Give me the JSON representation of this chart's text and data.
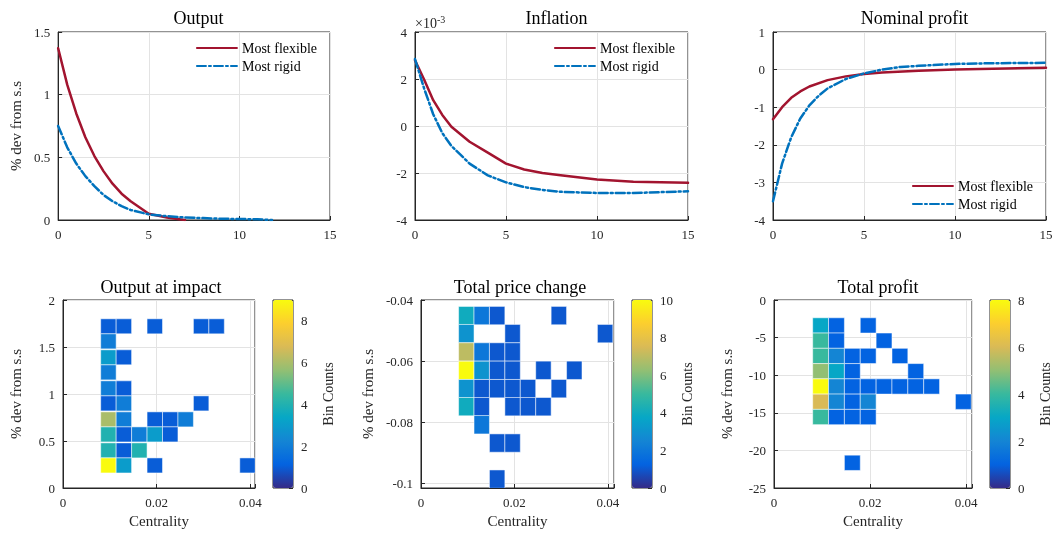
{
  "chart_data": [
    {
      "type": "line",
      "title": "Output",
      "ylabel": "% dev from s.s",
      "xlim": [
        0,
        15
      ],
      "xticks": [
        0,
        5,
        10,
        15
      ],
      "ylim": [
        0,
        1.5
      ],
      "yticks": [
        0,
        0.5,
        1,
        1.5
      ],
      "grid": true,
      "legend": "top right",
      "marker": "none",
      "series": [
        {
          "name": "Most flexible",
          "color": "#a2142f",
          "line_style": "solid",
          "x": [
            0,
            0.5,
            1,
            1.5,
            2,
            2.5,
            3,
            3.5,
            4,
            5,
            6,
            7
          ],
          "values": [
            1.37,
            1.08,
            0.85,
            0.66,
            0.51,
            0.39,
            0.29,
            0.21,
            0.15,
            0.05,
            0.02,
            0
          ]
        },
        {
          "name": "Most rigid",
          "color": "#0072bd",
          "line_style": "dashed",
          "x": [
            0,
            0.5,
            1,
            1.5,
            2,
            2.5,
            3,
            3.5,
            4,
            5,
            6,
            7,
            8,
            9,
            10,
            11,
            11.8
          ],
          "values": [
            0.75,
            0.58,
            0.45,
            0.35,
            0.27,
            0.2,
            0.15,
            0.11,
            0.08,
            0.045,
            0.03,
            0.02,
            0.015,
            0.01,
            0.008,
            0.005,
            0
          ]
        }
      ]
    },
    {
      "type": "line",
      "title": "Inflation",
      "annotations": [
        "×10$^{-3}$"
      ],
      "xlim": [
        0,
        15
      ],
      "xticks": [
        0,
        5,
        10,
        15
      ],
      "ylim": [
        -4,
        4
      ],
      "yticks": [
        -4,
        -2,
        0,
        2,
        4
      ],
      "grid": true,
      "legend": "top right",
      "marker": "none",
      "series": [
        {
          "name": "Most flexible",
          "color": "#a2142f",
          "line_style": "solid",
          "x": [
            0,
            0.5,
            1,
            1.5,
            2,
            3,
            4,
            5,
            6,
            7,
            8,
            10,
            12,
            15
          ],
          "values": [
            2.8,
            1.98,
            1.1,
            0.47,
            -0.03,
            -0.67,
            -1.13,
            -1.6,
            -1.85,
            -2.0,
            -2.1,
            -2.28,
            -2.37,
            -2.42
          ]
        },
        {
          "name": "Most rigid",
          "color": "#0072bd",
          "line_style": "dashed",
          "x": [
            0,
            0.5,
            1,
            1.5,
            2,
            3,
            4,
            5,
            6,
            7,
            8,
            10,
            12,
            15
          ],
          "values": [
            2.85,
            1.6,
            0.5,
            -0.3,
            -0.85,
            -1.6,
            -2.1,
            -2.4,
            -2.6,
            -2.72,
            -2.8,
            -2.85,
            -2.85,
            -2.78
          ]
        }
      ]
    },
    {
      "type": "line",
      "title": "Nominal profit",
      "xlim": [
        0,
        15
      ],
      "xticks": [
        0,
        5,
        10,
        15
      ],
      "ylim": [
        -4,
        1
      ],
      "yticks": [
        -4,
        -3,
        -2,
        -1,
        0,
        1
      ],
      "grid": true,
      "legend": "bottom right",
      "marker": "none",
      "series": [
        {
          "name": "Most flexible",
          "color": "#a2142f",
          "line_style": "solid",
          "x": [
            0,
            0.5,
            1,
            1.5,
            2,
            3,
            4,
            5,
            6,
            8,
            10,
            15
          ],
          "values": [
            -1.32,
            -1.0,
            -0.75,
            -0.58,
            -0.45,
            -0.28,
            -0.18,
            -0.12,
            -0.08,
            -0.03,
            0.0,
            0.05
          ]
        },
        {
          "name": "Most rigid",
          "color": "#0072bd",
          "line_style": "dashed",
          "x": [
            0,
            0.5,
            1,
            1.5,
            2,
            2.5,
            3,
            4,
            5,
            6,
            7,
            8,
            10,
            12,
            15
          ],
          "values": [
            -3.5,
            -2.5,
            -1.8,
            -1.3,
            -0.95,
            -0.7,
            -0.5,
            -0.25,
            -0.1,
            0.0,
            0.07,
            0.1,
            0.15,
            0.17,
            0.18
          ]
        }
      ]
    },
    {
      "type": "scatter",
      "title": "Output at impact",
      "xlabel": "Centrality",
      "ylabel": "% dev from s.s",
      "clabel": "Bin Counts",
      "xlim": [
        0,
        0.041
      ],
      "xticks": [
        0,
        0.02,
        0.04
      ],
      "ylim": [
        0,
        2
      ],
      "yticks": [
        0,
        0.5,
        1,
        1.5,
        2
      ],
      "clim": [
        0,
        9
      ],
      "cticks": [
        0,
        2,
        4,
        6,
        8
      ],
      "grid": true,
      "marker": "square",
      "x": [
        0.0097,
        0.013,
        0.0196,
        0.0295,
        0.0328,
        0.0097,
        0.0097,
        0.013,
        0.0097,
        0.0097,
        0.013,
        0.0097,
        0.013,
        0.0295,
        0.0097,
        0.013,
        0.0196,
        0.0229,
        0.0262,
        0.0097,
        0.013,
        0.0163,
        0.0196,
        0.0229,
        0.0097,
        0.013,
        0.0163,
        0.0097,
        0.013,
        0.0196,
        0.0394
      ],
      "values": [
        1.72,
        1.72,
        1.72,
        1.72,
        1.72,
        1.56,
        1.39,
        1.39,
        1.23,
        1.06,
        1.06,
        0.9,
        0.9,
        0.9,
        0.73,
        0.73,
        0.73,
        0.73,
        0.73,
        0.57,
        0.57,
        0.57,
        0.57,
        0.57,
        0.4,
        0.4,
        0.4,
        0.24,
        0.24,
        0.24,
        0.24
      ],
      "cvalues": [
        1,
        1,
        1,
        1,
        1,
        2,
        3,
        1,
        2,
        2,
        1,
        1,
        2,
        1,
        6,
        2,
        1,
        1,
        2,
        4,
        1,
        2,
        3,
        1,
        4,
        1,
        4,
        9,
        3,
        1,
        1
      ]
    },
    {
      "type": "scatter",
      "title": "Total price change",
      "xlabel": "Centrality",
      "ylabel": "% dev from s.s",
      "clabel": "Bin Counts",
      "xlim": [
        0,
        0.0413
      ],
      "xticks": [
        0,
        0.02,
        0.04
      ],
      "ylim": [
        -0.1015,
        -0.04
      ],
      "yticks": [
        -0.1,
        -0.08,
        -0.06,
        -0.04
      ],
      "clim": [
        0,
        10
      ],
      "cticks": [
        0,
        2,
        4,
        6,
        8,
        10
      ],
      "grid": true,
      "marker": "square",
      "x": [
        0.0097,
        0.013,
        0.0163,
        0.0295,
        0.0097,
        0.0196,
        0.0394,
        0.0097,
        0.013,
        0.0163,
        0.0196,
        0.0097,
        0.013,
        0.0163,
        0.0196,
        0.0262,
        0.0328,
        0.0097,
        0.013,
        0.0163,
        0.0196,
        0.0229,
        0.0295,
        0.0097,
        0.013,
        0.0196,
        0.0229,
        0.0262,
        0.013,
        0.0163,
        0.0196,
        0.0163
      ],
      "values": [
        -0.0451,
        -0.0451,
        -0.0451,
        -0.0451,
        -0.051,
        -0.051,
        -0.051,
        -0.057,
        -0.057,
        -0.057,
        -0.057,
        -0.063,
        -0.063,
        -0.063,
        -0.063,
        -0.063,
        -0.063,
        -0.069,
        -0.069,
        -0.069,
        -0.069,
        -0.069,
        -0.069,
        -0.0749,
        -0.0749,
        -0.0749,
        -0.0749,
        -0.0749,
        -0.0808,
        -0.0868,
        -0.0868,
        -0.0986
      ],
      "cvalues": [
        4,
        2,
        1,
        1,
        3,
        1,
        1,
        7,
        2,
        1,
        1,
        10,
        3,
        1,
        1,
        1,
        1,
        3,
        1,
        1,
        1,
        1,
        1,
        4,
        1,
        1,
        1,
        1,
        2,
        1,
        1,
        1
      ]
    },
    {
      "type": "scatter",
      "title": "Total profit",
      "xlabel": "Centrality",
      "ylabel": "% dev from s.s",
      "clabel": "Bin Counts",
      "xlim": [
        0,
        0.0412
      ],
      "xticks": [
        0,
        0.02,
        0.04
      ],
      "ylim": [
        -25,
        0
      ],
      "yticks": [
        -25,
        -20,
        -15,
        -10,
        -5,
        0
      ],
      "clim": [
        0,
        8
      ],
      "cticks": [
        0,
        2,
        4,
        6,
        8
      ],
      "grid": true,
      "marker": "square",
      "x": [
        0.0097,
        0.013,
        0.0196,
        0.0097,
        0.013,
        0.0229,
        0.0097,
        0.013,
        0.0163,
        0.0196,
        0.0262,
        0.0097,
        0.013,
        0.0163,
        0.0295,
        0.0097,
        0.013,
        0.0163,
        0.0196,
        0.0229,
        0.0262,
        0.0295,
        0.0328,
        0.0097,
        0.013,
        0.0163,
        0.0196,
        0.0394,
        0.0097,
        0.013,
        0.0163,
        0.0196,
        0.0163
      ],
      "values": [
        -3.38,
        -3.38,
        -3.38,
        -5.41,
        -5.41,
        -5.41,
        -7.44,
        -7.44,
        -7.44,
        -7.44,
        -7.44,
        -9.47,
        -9.47,
        -9.47,
        -9.47,
        -11.5,
        -11.5,
        -11.5,
        -11.5,
        -11.5,
        -11.5,
        -11.5,
        -11.5,
        -13.53,
        -13.53,
        -13.53,
        -13.53,
        -13.53,
        -15.56,
        -15.56,
        -15.56,
        -15.56,
        -21.65
      ],
      "cvalues": [
        3,
        1,
        1,
        4,
        1,
        1,
        4,
        2,
        1,
        1,
        1,
        5,
        3,
        1,
        1,
        8,
        2,
        1,
        1,
        1,
        1,
        1,
        1,
        6,
        2,
        1,
        2,
        1,
        4,
        1,
        1,
        1,
        1
      ]
    }
  ]
}
